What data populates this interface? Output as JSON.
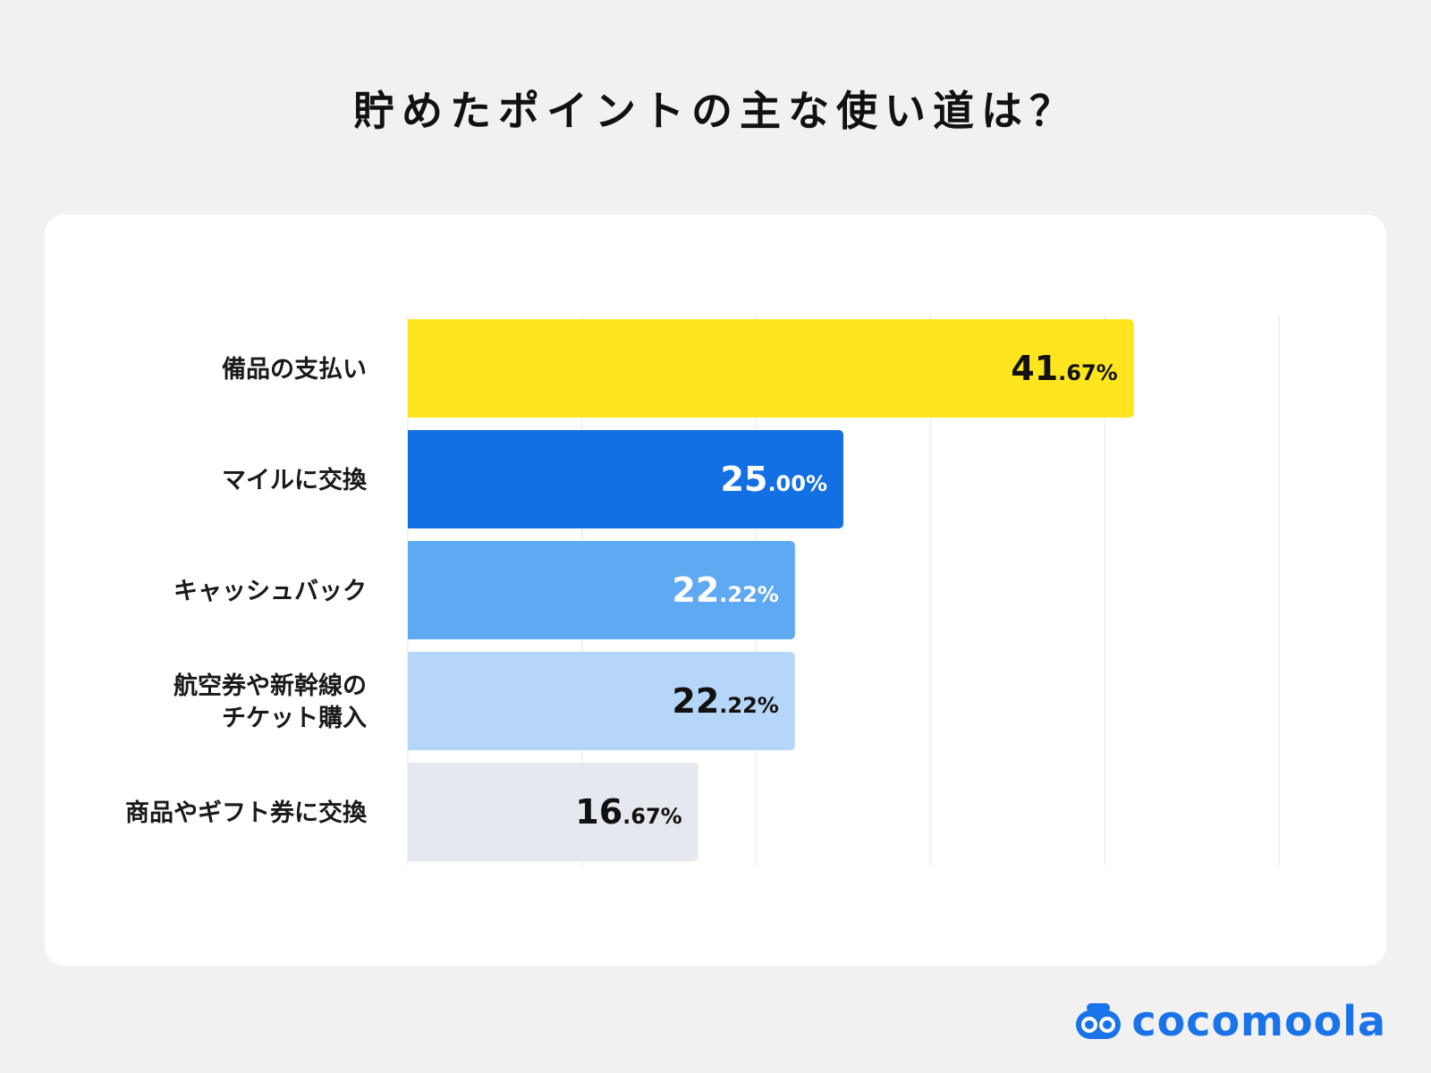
{
  "title": "貯めたポイントの主な使い道は？",
  "brand": {
    "name": "cocomoola",
    "icon": "cocomoola-logo-icon",
    "color": "#1a73e8"
  },
  "chart_data": {
    "type": "bar",
    "orientation": "horizontal",
    "title": "貯めたポイントの主な使い道は？",
    "xlabel": "",
    "ylabel": "",
    "xlim": [
      0,
      50
    ],
    "grid": true,
    "unit": "%",
    "categories": [
      [
        "備品の支払い"
      ],
      [
        "マイルに交換"
      ],
      [
        "キャッシュバック"
      ],
      [
        "航空券や新幹線の",
        "チケット購入"
      ],
      [
        "商品やギフト券に交換"
      ]
    ],
    "values": [
      41.67,
      25.0,
      22.22,
      22.22,
      16.67
    ],
    "value_labels": [
      {
        "int": "41",
        "dec": ".67%"
      },
      {
        "int": "25",
        "dec": ".00%"
      },
      {
        "int": "22",
        "dec": ".22%"
      },
      {
        "int": "22",
        "dec": ".22%"
      },
      {
        "int": "16",
        "dec": ".67%"
      }
    ],
    "bar_colors": [
      "#ffe51e",
      "#1270e3",
      "#5ea9f2",
      "#b6d6f9",
      "#e5e9ef"
    ],
    "label_colors": [
      "#111111",
      "#ffffff",
      "#ffffff",
      "#111111",
      "#111111"
    ]
  }
}
